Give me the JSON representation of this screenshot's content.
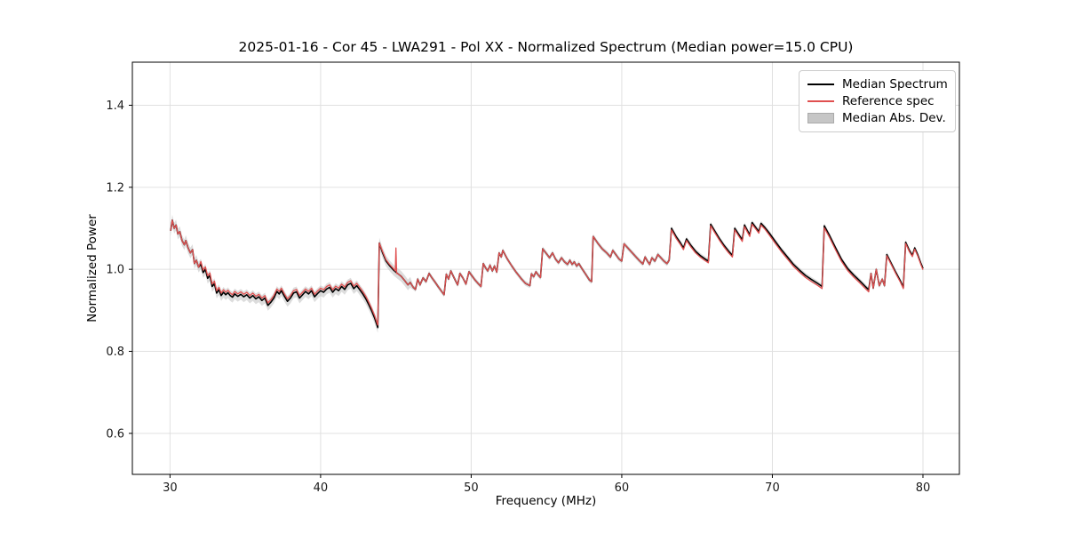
{
  "header": {
    "title": "2025-01-16 - Cor 45 - LWA291 - Pol XX - Normalized Spectrum (Median power=15.0 CPU)"
  },
  "axes": {
    "xlabel": "Frequency (MHz)",
    "ylabel": "Normalized Power",
    "x_ticks": [
      30,
      40,
      50,
      60,
      70,
      80
    ],
    "y_ticks": [
      0.6,
      0.8,
      1.0,
      1.2,
      1.4
    ],
    "grid": true,
    "grid_color": "#e0e0e0",
    "frame_color": "#000000",
    "tick_label_color": "#1a1a1a"
  },
  "legend": {
    "position": "upper right",
    "entries": [
      {
        "label": "Median Spectrum",
        "type": "line",
        "color": "#000000"
      },
      {
        "label": "Reference spec",
        "type": "line",
        "color": "#e05050"
      },
      {
        "label": "Median Abs. Dev.",
        "type": "patch",
        "color": "#c6c6c6"
      }
    ]
  },
  "chart_data": {
    "type": "line",
    "title": "2025-01-16 - Cor 45 - LWA291 - Pol XX - Normalized Spectrum (Median power=15.0 CPU)",
    "xlabel": "Frequency (MHz)",
    "ylabel": "Normalized Power",
    "xlim": [
      27.5,
      82.42
    ],
    "ylim": [
      0.5,
      1.505
    ],
    "x_ticks": [
      30,
      40,
      50,
      60,
      70,
      80
    ],
    "y_ticks": [
      0.6,
      0.8,
      1.0,
      1.2,
      1.4
    ],
    "grid": true,
    "series": [
      {
        "name": "Median Spectrum",
        "color": "#000000",
        "width": 1.6,
        "points": [
          [
            30.05,
            1.094
          ],
          [
            30.15,
            1.12
          ],
          [
            30.28,
            1.1
          ],
          [
            30.4,
            1.108
          ],
          [
            30.52,
            1.086
          ],
          [
            30.65,
            1.092
          ],
          [
            30.8,
            1.07
          ],
          [
            30.95,
            1.06
          ],
          [
            31.05,
            1.07
          ],
          [
            31.2,
            1.052
          ],
          [
            31.35,
            1.04
          ],
          [
            31.5,
            1.048
          ],
          [
            31.62,
            1.014
          ],
          [
            31.75,
            1.022
          ],
          [
            31.9,
            1.005
          ],
          [
            32.05,
            1.013
          ],
          [
            32.2,
            0.992
          ],
          [
            32.35,
            1.0
          ],
          [
            32.5,
            0.978
          ],
          [
            32.65,
            0.985
          ],
          [
            32.8,
            0.958
          ],
          [
            32.95,
            0.965
          ],
          [
            33.1,
            0.942
          ],
          [
            33.25,
            0.95
          ],
          [
            33.4,
            0.936
          ],
          [
            33.55,
            0.944
          ],
          [
            33.7,
            0.938
          ],
          [
            33.85,
            0.943
          ],
          [
            34.0,
            0.936
          ],
          [
            34.15,
            0.932
          ],
          [
            34.3,
            0.94
          ],
          [
            34.5,
            0.934
          ],
          [
            34.7,
            0.939
          ],
          [
            34.9,
            0.933
          ],
          [
            35.1,
            0.938
          ],
          [
            35.3,
            0.93
          ],
          [
            35.5,
            0.936
          ],
          [
            35.7,
            0.928
          ],
          [
            35.9,
            0.933
          ],
          [
            36.1,
            0.924
          ],
          [
            36.3,
            0.93
          ],
          [
            36.5,
            0.912
          ],
          [
            36.7,
            0.92
          ],
          [
            36.9,
            0.93
          ],
          [
            37.1,
            0.946
          ],
          [
            37.25,
            0.94
          ],
          [
            37.4,
            0.948
          ],
          [
            37.6,
            0.934
          ],
          [
            37.8,
            0.922
          ],
          [
            38.0,
            0.93
          ],
          [
            38.2,
            0.942
          ],
          [
            38.4,
            0.945
          ],
          [
            38.6,
            0.93
          ],
          [
            38.8,
            0.938
          ],
          [
            39.0,
            0.946
          ],
          [
            39.2,
            0.94
          ],
          [
            39.4,
            0.948
          ],
          [
            39.6,
            0.933
          ],
          [
            39.8,
            0.941
          ],
          [
            40.0,
            0.948
          ],
          [
            40.2,
            0.944
          ],
          [
            40.4,
            0.952
          ],
          [
            40.6,
            0.956
          ],
          [
            40.8,
            0.944
          ],
          [
            41.0,
            0.953
          ],
          [
            41.2,
            0.948
          ],
          [
            41.4,
            0.958
          ],
          [
            41.6,
            0.951
          ],
          [
            41.8,
            0.962
          ],
          [
            42.0,
            0.966
          ],
          [
            42.2,
            0.953
          ],
          [
            42.4,
            0.96
          ],
          [
            42.6,
            0.95
          ],
          [
            42.8,
            0.94
          ],
          [
            43.0,
            0.928
          ],
          [
            43.2,
            0.914
          ],
          [
            43.4,
            0.898
          ],
          [
            43.6,
            0.88
          ],
          [
            43.8,
            0.858
          ],
          [
            43.9,
            1.064
          ],
          [
            44.1,
            1.042
          ],
          [
            44.35,
            1.02
          ],
          [
            44.6,
            1.008
          ],
          [
            44.85,
            0.998
          ],
          [
            45.1,
            0.99
          ],
          [
            45.35,
            0.983
          ],
          [
            45.6,
            0.972
          ],
          [
            45.8,
            0.962
          ],
          [
            45.95,
            0.968
          ],
          [
            46.15,
            0.956
          ],
          [
            46.3,
            0.951
          ],
          [
            46.45,
            0.976
          ],
          [
            46.6,
            0.962
          ],
          [
            46.8,
            0.979
          ],
          [
            47.0,
            0.97
          ],
          [
            47.2,
            0.99
          ],
          [
            47.4,
            0.979
          ],
          [
            47.6,
            0.969
          ],
          [
            47.8,
            0.958
          ],
          [
            48.0,
            0.948
          ],
          [
            48.2,
            0.938
          ],
          [
            48.35,
            0.988
          ],
          [
            48.5,
            0.976
          ],
          [
            48.65,
            0.996
          ],
          [
            48.8,
            0.984
          ],
          [
            48.95,
            0.973
          ],
          [
            49.1,
            0.962
          ],
          [
            49.25,
            0.99
          ],
          [
            49.45,
            0.979
          ],
          [
            49.65,
            0.964
          ],
          [
            49.85,
            0.994
          ],
          [
            50.05,
            0.984
          ],
          [
            50.25,
            0.974
          ],
          [
            50.45,
            0.966
          ],
          [
            50.65,
            0.958
          ],
          [
            50.8,
            1.014
          ],
          [
            50.95,
            1.004
          ],
          [
            51.1,
            0.996
          ],
          [
            51.25,
            1.01
          ],
          [
            51.4,
            0.996
          ],
          [
            51.55,
            1.008
          ],
          [
            51.7,
            0.993
          ],
          [
            51.85,
            1.04
          ],
          [
            52.0,
            1.03
          ],
          [
            52.1,
            1.046
          ],
          [
            52.4,
            1.025
          ],
          [
            52.7,
            1.008
          ],
          [
            53.0,
            0.992
          ],
          [
            53.3,
            0.978
          ],
          [
            53.6,
            0.966
          ],
          [
            53.9,
            0.96
          ],
          [
            54.0,
            0.989
          ],
          [
            54.15,
            0.982
          ],
          [
            54.3,
            0.994
          ],
          [
            54.45,
            0.986
          ],
          [
            54.6,
            0.98
          ],
          [
            54.75,
            1.05
          ],
          [
            55.0,
            1.038
          ],
          [
            55.2,
            1.028
          ],
          [
            55.4,
            1.04
          ],
          [
            55.6,
            1.025
          ],
          [
            55.8,
            1.016
          ],
          [
            56.0,
            1.028
          ],
          [
            56.2,
            1.018
          ],
          [
            56.4,
            1.012
          ],
          [
            56.55,
            1.022
          ],
          [
            56.7,
            1.012
          ],
          [
            56.85,
            1.018
          ],
          [
            57.0,
            1.008
          ],
          [
            57.15,
            1.014
          ],
          [
            57.35,
            1.002
          ],
          [
            57.6,
            0.988
          ],
          [
            57.85,
            0.974
          ],
          [
            58.0,
            0.97
          ],
          [
            58.1,
            1.08
          ],
          [
            58.4,
            1.064
          ],
          [
            58.7,
            1.05
          ],
          [
            59.0,
            1.04
          ],
          [
            59.25,
            1.03
          ],
          [
            59.4,
            1.046
          ],
          [
            59.6,
            1.036
          ],
          [
            59.8,
            1.026
          ],
          [
            60.0,
            1.02
          ],
          [
            60.15,
            1.062
          ],
          [
            60.35,
            1.054
          ],
          [
            60.6,
            1.044
          ],
          [
            60.9,
            1.032
          ],
          [
            61.2,
            1.02
          ],
          [
            61.4,
            1.013
          ],
          [
            61.55,
            1.03
          ],
          [
            61.7,
            1.02
          ],
          [
            61.85,
            1.012
          ],
          [
            62.0,
            1.028
          ],
          [
            62.2,
            1.02
          ],
          [
            62.4,
            1.036
          ],
          [
            62.6,
            1.028
          ],
          [
            62.8,
            1.02
          ],
          [
            63.0,
            1.014
          ],
          [
            63.15,
            1.022
          ],
          [
            63.3,
            1.1
          ],
          [
            63.6,
            1.08
          ],
          [
            63.9,
            1.064
          ],
          [
            64.1,
            1.052
          ],
          [
            64.3,
            1.074
          ],
          [
            64.6,
            1.058
          ],
          [
            64.9,
            1.044
          ],
          [
            65.2,
            1.034
          ],
          [
            65.5,
            1.026
          ],
          [
            65.75,
            1.02
          ],
          [
            65.9,
            1.11
          ],
          [
            66.2,
            1.092
          ],
          [
            66.5,
            1.074
          ],
          [
            66.8,
            1.058
          ],
          [
            67.1,
            1.044
          ],
          [
            67.35,
            1.034
          ],
          [
            67.5,
            1.1
          ],
          [
            67.75,
            1.086
          ],
          [
            68.0,
            1.072
          ],
          [
            68.15,
            1.108
          ],
          [
            68.35,
            1.094
          ],
          [
            68.5,
            1.084
          ],
          [
            68.65,
            1.114
          ],
          [
            68.9,
            1.102
          ],
          [
            69.1,
            1.092
          ],
          [
            69.25,
            1.112
          ],
          [
            69.5,
            1.102
          ],
          [
            69.8,
            1.088
          ],
          [
            70.2,
            1.068
          ],
          [
            70.6,
            1.048
          ],
          [
            71.0,
            1.03
          ],
          [
            71.4,
            1.012
          ],
          [
            71.8,
            0.998
          ],
          [
            72.2,
            0.985
          ],
          [
            72.6,
            0.975
          ],
          [
            73.0,
            0.966
          ],
          [
            73.3,
            0.958
          ],
          [
            73.45,
            1.106
          ],
          [
            73.8,
            1.082
          ],
          [
            74.2,
            1.052
          ],
          [
            74.6,
            1.024
          ],
          [
            75.0,
            1.002
          ],
          [
            75.4,
            0.986
          ],
          [
            75.8,
            0.972
          ],
          [
            76.2,
            0.957
          ],
          [
            76.4,
            0.95
          ],
          [
            76.55,
            0.99
          ],
          [
            76.7,
            0.954
          ],
          [
            76.9,
            1.0
          ],
          [
            77.1,
            0.96
          ],
          [
            77.3,
            0.976
          ],
          [
            77.45,
            0.96
          ],
          [
            77.6,
            1.036
          ],
          [
            77.9,
            1.014
          ],
          [
            78.2,
            0.992
          ],
          [
            78.5,
            0.972
          ],
          [
            78.7,
            0.956
          ],
          [
            78.85,
            1.066
          ],
          [
            79.1,
            1.046
          ],
          [
            79.3,
            1.034
          ],
          [
            79.45,
            1.052
          ],
          [
            79.65,
            1.036
          ],
          [
            79.85,
            1.016
          ],
          [
            80.0,
            1.002
          ]
        ]
      },
      {
        "name": "Reference spec",
        "color": "#e05050",
        "width": 1.3,
        "derived_from": "Median Spectrum",
        "offsets": [
          {
            "from": 32.0,
            "to": 43.85,
            "dv": 0.006
          },
          {
            "from": 43.95,
            "to": 44.9,
            "dv": 0.003
          },
          {
            "from": 63.3,
            "to": 69.5,
            "dv": -0.004
          },
          {
            "from": 69.5,
            "to": 76.45,
            "dv": -0.005
          },
          {
            "from": 77.5,
            "to": 80.0,
            "dv": -0.003
          }
        ],
        "extra_points": [
          [
            44.96,
            0.996
          ],
          [
            45.0,
            1.052
          ],
          [
            45.05,
            0.99
          ]
        ]
      }
    ],
    "band": {
      "name": "Median Abs. Dev.",
      "around": "Median Spectrum",
      "color": "#bbbbbb",
      "opacity": 0.5,
      "segments": [
        {
          "from": 27.5,
          "to": 46.0,
          "width": 0.013
        },
        {
          "from": 46.0,
          "to": 82.42,
          "width": 0.006
        }
      ]
    }
  }
}
